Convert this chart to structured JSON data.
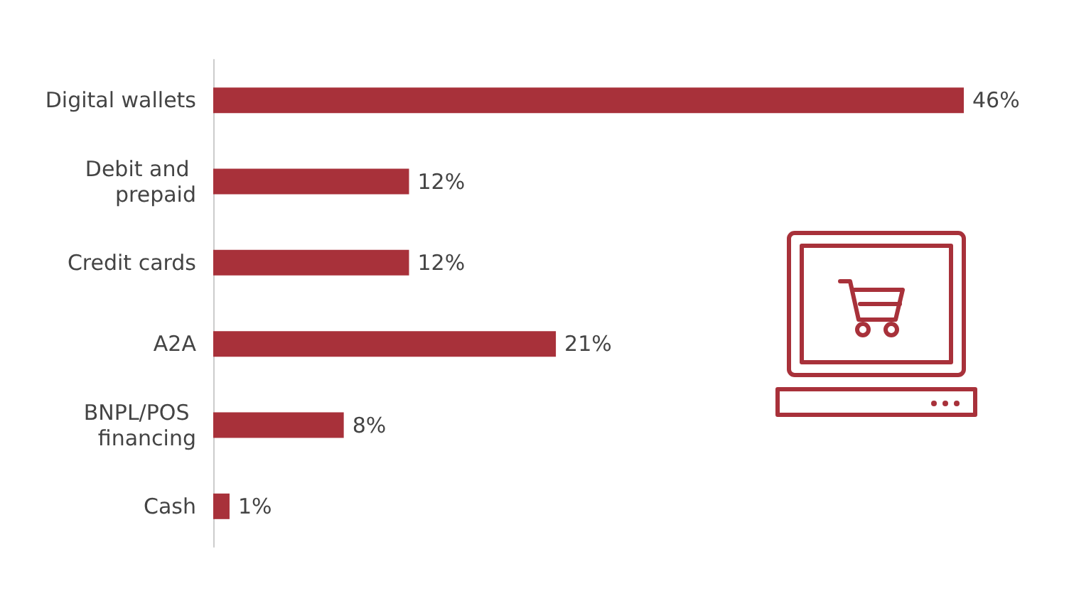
{
  "chart_data": {
    "type": "bar",
    "orientation": "horizontal",
    "categories": [
      "Digital wallets",
      "Debit and prepaid",
      "Credit cards",
      "A2A",
      "BNPL/POS financing",
      "Cash"
    ],
    "values": [
      46,
      12,
      12,
      21,
      8,
      1
    ],
    "value_labels": [
      "46%",
      "12%",
      "12%",
      "21%",
      "8%",
      "1%"
    ],
    "color": "#a8313a"
  }
}
